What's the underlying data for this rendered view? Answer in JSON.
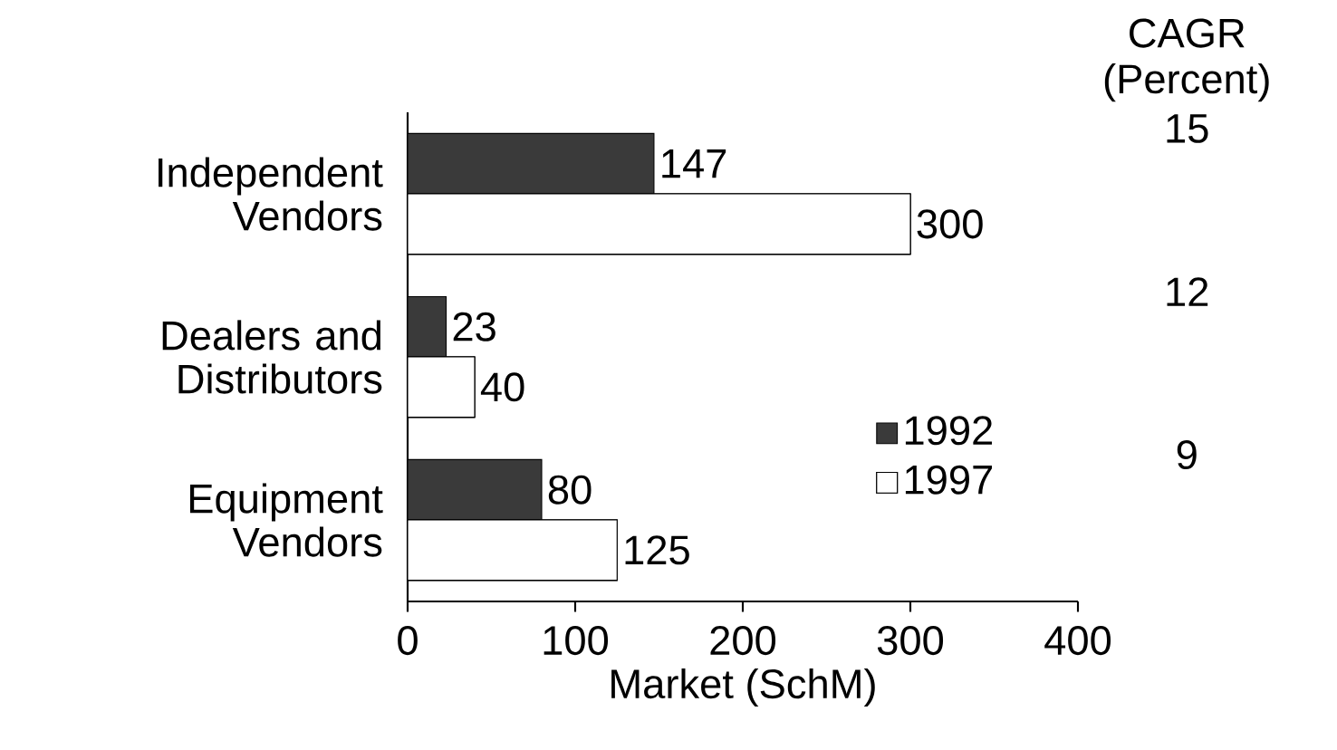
{
  "chart_data": {
    "type": "bar",
    "orientation": "horizontal",
    "categories": [
      "Independent Vendors",
      "Dealers and Distributors",
      "Equipment Vendors"
    ],
    "series": [
      {
        "name": "1992",
        "color": "#3a3a3a",
        "values": [
          147,
          23,
          80
        ]
      },
      {
        "name": "1997",
        "color": "#ffffff",
        "values": [
          300,
          40,
          125
        ]
      }
    ],
    "xlabel": "Market (SchM)",
    "xlim": [
      0,
      400
    ],
    "xticks": [
      0,
      100,
      200,
      300,
      400
    ],
    "data_labels": true,
    "legend": "right",
    "grid": false,
    "annotations": [
      "CAGR (Percent)",
      "15",
      "12",
      "9"
    ]
  }
}
